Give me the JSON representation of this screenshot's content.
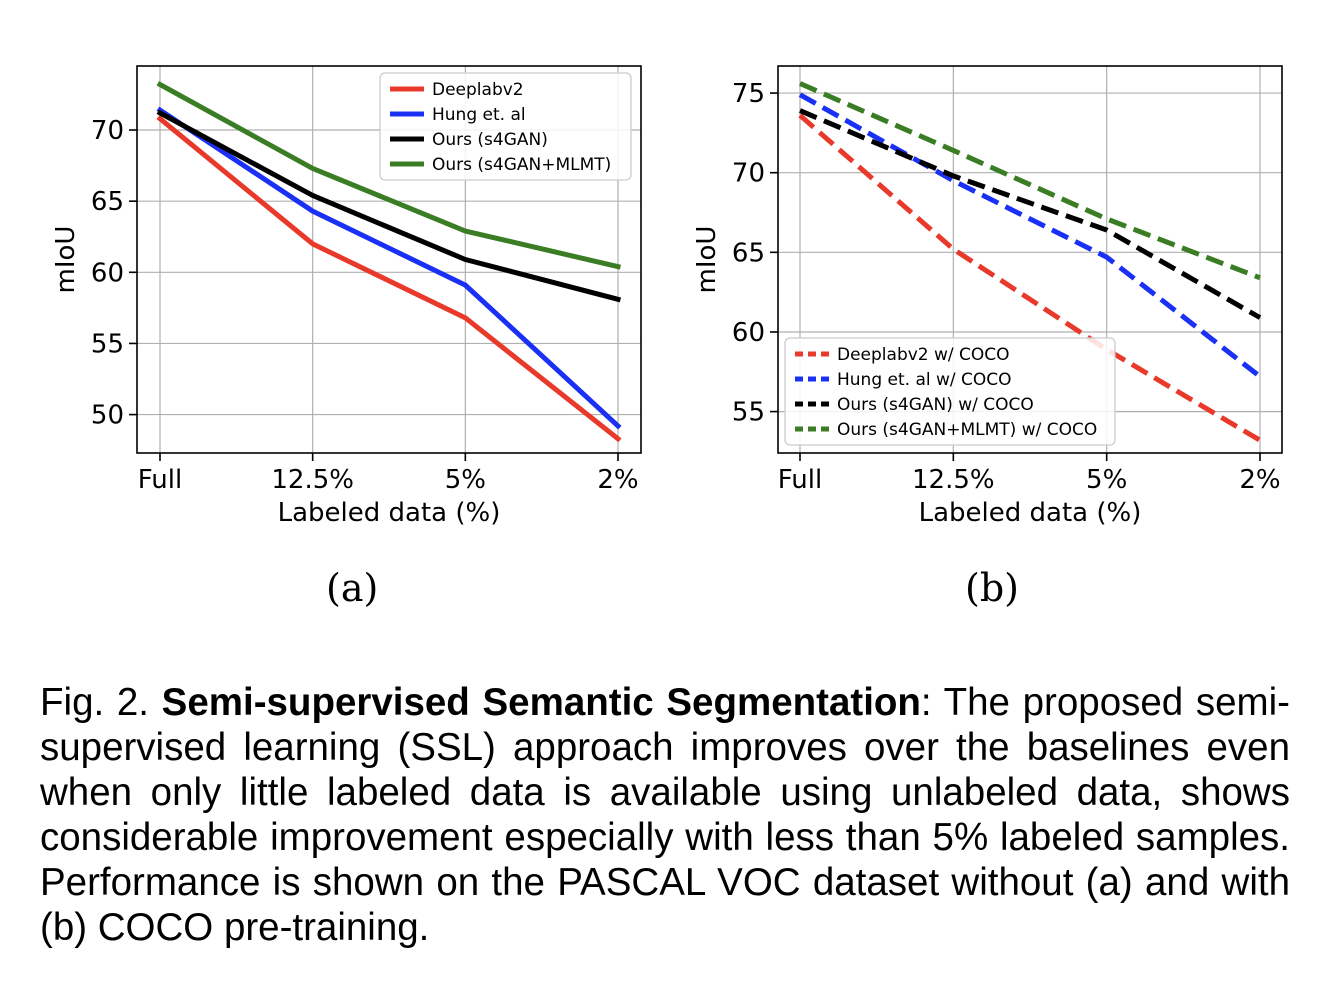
{
  "chart_data": [
    {
      "type": "line",
      "panel": "(a)",
      "categories": [
        "Full",
        "12.5%",
        "5%",
        "2%"
      ],
      "xlabel": "Labeled data (%)",
      "ylabel": "mIoU",
      "ylim": [
        47.3,
        74.5
      ],
      "yticks": [
        50,
        55,
        60,
        65,
        70
      ],
      "grid": true,
      "legend_position": "top-right",
      "series": [
        {
          "name": "Deeplabv2",
          "color": "#e8392b",
          "dash": "solid",
          "values": [
            70.8,
            62.0,
            56.8,
            48.3
          ]
        },
        {
          "name": "Hung et. al",
          "color": "#1a30f5",
          "dash": "solid",
          "values": [
            71.4,
            64.3,
            59.1,
            49.2
          ]
        },
        {
          "name": "Ours (s4GAN)",
          "color": "#000000",
          "dash": "solid",
          "values": [
            71.2,
            65.4,
            60.9,
            58.1
          ]
        },
        {
          "name": "Ours (s4GAN+MLMT)",
          "color": "#3a7d24",
          "dash": "solid",
          "values": [
            73.2,
            67.3,
            62.9,
            60.4
          ]
        }
      ]
    },
    {
      "type": "line",
      "panel": "(b)",
      "categories": [
        "Full",
        "12.5%",
        "5%",
        "2%"
      ],
      "xlabel": "Labeled data (%)",
      "ylabel": "mIoU",
      "ylim": [
        52.4,
        76.7
      ],
      "yticks": [
        55,
        60,
        65,
        70,
        75
      ],
      "grid": true,
      "legend_position": "bottom-left",
      "series": [
        {
          "name": "Deeplabv2 w/ COCO",
          "color": "#e8392b",
          "dash": "dashed",
          "values": [
            73.6,
            65.2,
            58.9,
            53.2
          ]
        },
        {
          "name": "Hung et. al w/ COCO",
          "color": "#1a30f5",
          "dash": "dashed",
          "values": [
            74.9,
            69.5,
            64.7,
            57.2
          ]
        },
        {
          "name": "Ours (s4GAN) w/ COCO",
          "color": "#000000",
          "dash": "dashed",
          "values": [
            73.9,
            69.8,
            66.4,
            60.9
          ]
        },
        {
          "name": "Ours (s4GAN+MLMT) w/ COCO",
          "color": "#3a7d24",
          "dash": "dashed",
          "values": [
            75.6,
            71.4,
            67.1,
            63.4
          ]
        }
      ]
    }
  ],
  "caption": {
    "prefix": "Fig. 2. ",
    "bold": "Semi-supervised Semantic Segmentation",
    "text": ": The proposed semi-supervised learning (SSL) approach improves over the baselines even when only little labeled data is available using unlabeled data, shows considerable improvement especially with less than 5% labeled samples. Performance is shown on the PASCAL VOC dataset without (a) and with (b) COCO pre-training."
  }
}
